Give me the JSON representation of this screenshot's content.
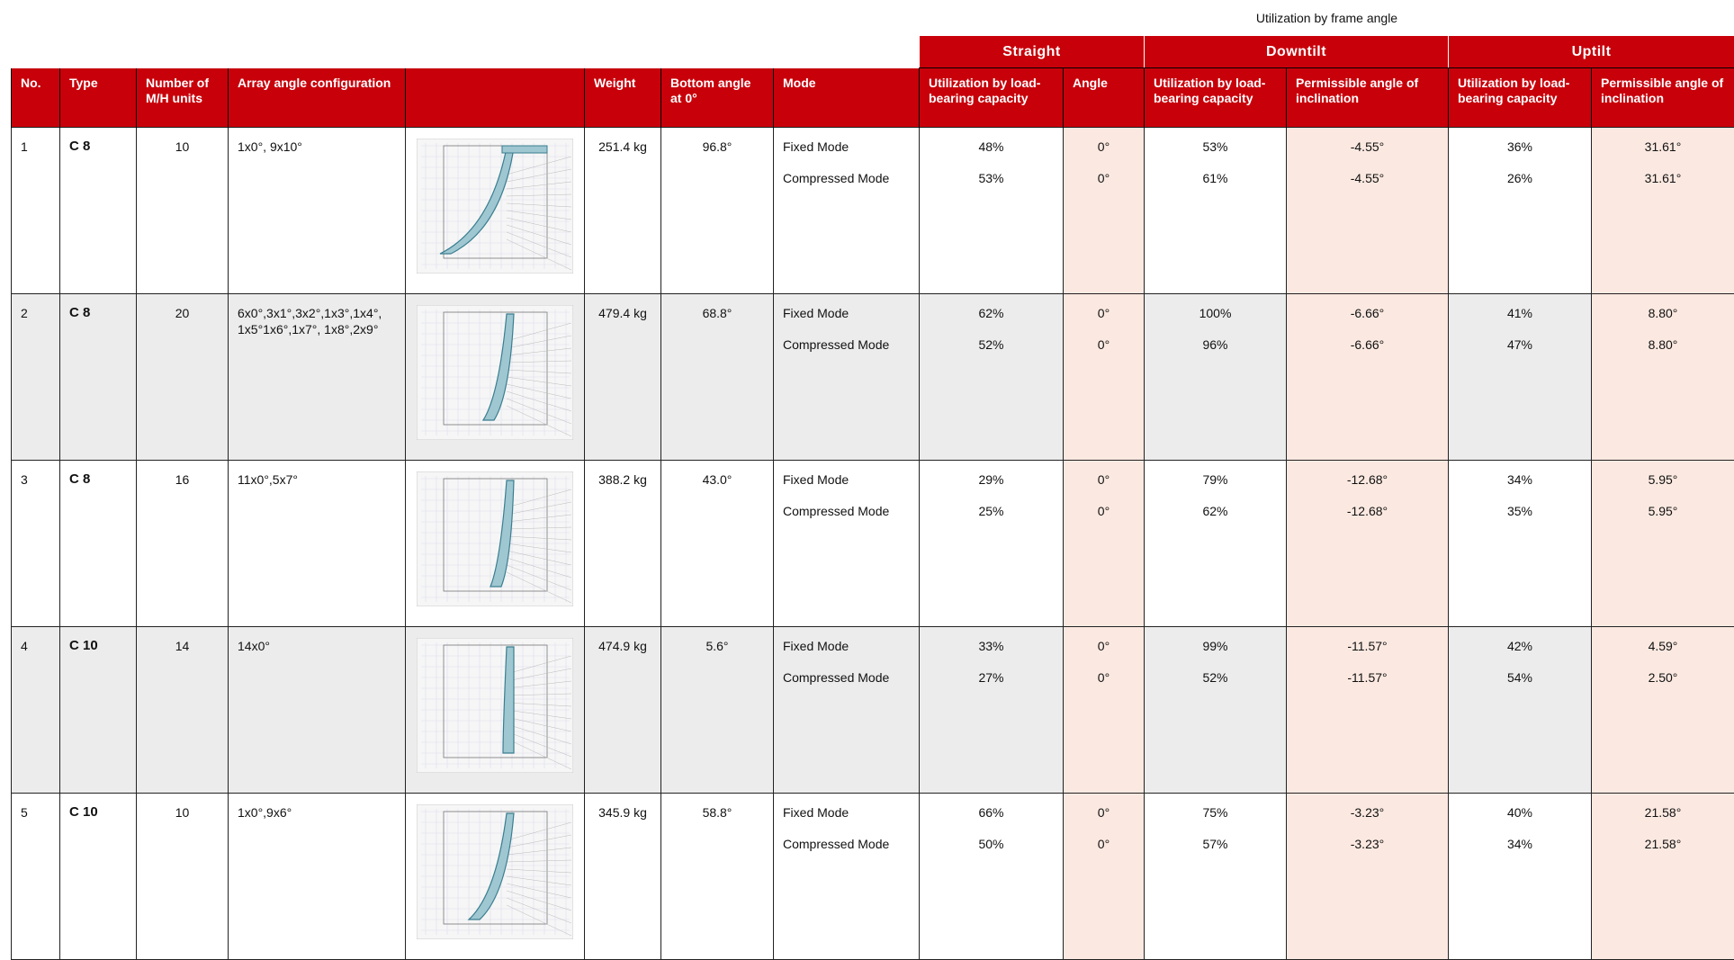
{
  "table": {
    "super_header": "Utilization by frame angle",
    "groups": [
      "Straight",
      "Downtilt",
      "Uptilt"
    ],
    "columns": [
      "No.",
      "Type",
      "Number of M/H units",
      "Array angle configuration",
      "Weight",
      "Bottom angle at 0°",
      "Mode",
      "Utilization by load-bearing capacity",
      "Angle",
      "Utilization by load-bearing capacity",
      "Permissible angle of inclination",
      "Utilization by load-bearing capacity",
      "Permissible angle of inclination"
    ],
    "rows": [
      {
        "no": "1",
        "type": "C 8",
        "units": "10",
        "config": "1x0°, 9x10°",
        "weight": "251.4 kg",
        "bottom_angle": "96.8°",
        "modes": [
          {
            "mode": "Fixed Mode",
            "straight_util": "48%",
            "straight_angle": "0°",
            "down_util": "53%",
            "down_angle": "-4.55°",
            "up_util": "36%",
            "up_angle": "31.61°"
          },
          {
            "mode": "Compressed Mode",
            "straight_util": "53%",
            "straight_angle": "0°",
            "down_util": "61%",
            "down_angle": "-4.55°",
            "up_util": "26%",
            "up_angle": "31.61°"
          }
        ]
      },
      {
        "no": "2",
        "type": "C 8",
        "units": "20",
        "config": "6x0°,3x1°,3x2°,1x3°,1x4°, 1x5°1x6°,1x7°, 1x8°,2x9°",
        "weight": "479.4 kg",
        "bottom_angle": "68.8°",
        "modes": [
          {
            "mode": "Fixed Mode",
            "straight_util": "62%",
            "straight_angle": "0°",
            "down_util": "100%",
            "down_angle": "-6.66°",
            "up_util": "41%",
            "up_angle": "8.80°"
          },
          {
            "mode": "Compressed Mode",
            "straight_util": "52%",
            "straight_angle": "0°",
            "down_util": "96%",
            "down_angle": "-6.66°",
            "up_util": "47%",
            "up_angle": "8.80°"
          }
        ]
      },
      {
        "no": "3",
        "type": "C 8",
        "units": "16",
        "config": "11x0°,5x7°",
        "weight": "388.2 kg",
        "bottom_angle": "43.0°",
        "modes": [
          {
            "mode": "Fixed Mode",
            "straight_util": "29%",
            "straight_angle": "0°",
            "down_util": "79%",
            "down_angle": "-12.68°",
            "up_util": "34%",
            "up_angle": "5.95°"
          },
          {
            "mode": "Compressed Mode",
            "straight_util": "25%",
            "straight_angle": "0°",
            "down_util": "62%",
            "down_angle": "-12.68°",
            "up_util": "35%",
            "up_angle": "5.95°"
          }
        ]
      },
      {
        "no": "4",
        "type": "C 10",
        "units": "14",
        "config": "14x0°",
        "weight": "474.9 kg",
        "bottom_angle": "5.6°",
        "modes": [
          {
            "mode": "Fixed Mode",
            "straight_util": "33%",
            "straight_angle": "0°",
            "down_util": "99%",
            "down_angle": "-11.57°",
            "up_util": "42%",
            "up_angle": "4.59°"
          },
          {
            "mode": "Compressed Mode",
            "straight_util": "27%",
            "straight_angle": "0°",
            "down_util": "52%",
            "down_angle": "-11.57°",
            "up_util": "54%",
            "up_angle": "2.50°"
          }
        ]
      },
      {
        "no": "5",
        "type": "C 10",
        "units": "10",
        "config": "1x0°,9x6°",
        "weight": "345.9 kg",
        "bottom_angle": "58.8°",
        "modes": [
          {
            "mode": "Fixed Mode",
            "straight_util": "66%",
            "straight_angle": "0°",
            "down_util": "75%",
            "down_angle": "-3.23°",
            "up_util": "40%",
            "up_angle": "21.58°"
          },
          {
            "mode": "Compressed Mode",
            "straight_util": "50%",
            "straight_angle": "0°",
            "down_util": "57%",
            "down_angle": "-3.23°",
            "up_util": "34%",
            "up_angle": "21.58°"
          }
        ]
      }
    ]
  }
}
